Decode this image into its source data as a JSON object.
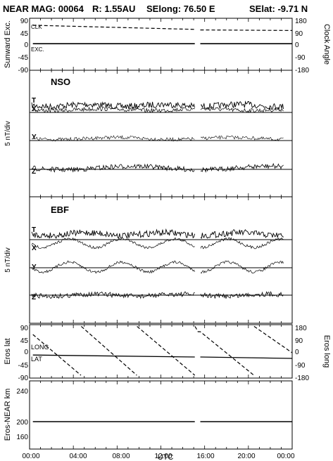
{
  "title": {
    "mission": "NEAR MAG: 00064",
    "range": "R: 1.55AU",
    "selong": "SElong:   76.50 E",
    "selat": "SElat:   -9.71 N"
  },
  "xaxis": {
    "label": "UTC",
    "ticks": [
      "00:00",
      "04:00",
      "08:00",
      "12:00",
      "16:00",
      "20:00",
      "00:00"
    ]
  },
  "panels": {
    "sunward": {
      "left_label": "Sunward Exc.",
      "right_label": "Clock Angle",
      "left_ticks": [
        "90",
        "45",
        "0",
        "-45",
        "-90"
      ],
      "right_ticks": [
        "180",
        "90",
        "0",
        "-90",
        "-180"
      ],
      "clk_label": "CLK",
      "exc_label": "EXC."
    },
    "nso": {
      "title": "NSO",
      "ylabel": "5 nT/div",
      "trace_labels": [
        "T",
        "X",
        "Y",
        "Z"
      ]
    },
    "ebf": {
      "title": "EBF",
      "ylabel": "5 nT/div",
      "trace_labels": [
        "T",
        "X",
        "Y",
        "Z"
      ]
    },
    "eros": {
      "left_label": "Eros lat",
      "right_label": "Eros long",
      "left_ticks": [
        "90",
        "45",
        "0",
        "-45",
        "-90"
      ],
      "right_ticks": [
        "180",
        "90",
        "0",
        "-90",
        "-180"
      ],
      "long_label": "LONG",
      "lat_label": "LAT"
    },
    "distance": {
      "left_label": "Eros-NEAR km",
      "left_ticks": [
        "240",
        "200",
        "160"
      ]
    }
  },
  "chart_data": [
    {
      "type": "line",
      "panel": "sunward",
      "ylabel": "Sunward Exc.",
      "y2label": "Clock Angle",
      "ylim": [
        -90,
        90
      ],
      "y2lim": [
        -180,
        180
      ],
      "xlim": [
        0,
        24
      ],
      "gap": [
        15.1,
        15.6
      ],
      "series": [
        {
          "name": "CLK",
          "axis": "right",
          "x": [
            0.3,
            4,
            8,
            12,
            15.1,
            15.6,
            20,
            24
          ],
          "values": [
            135,
            128,
            120,
            112,
            106,
            102,
            100,
            98
          ]
        },
        {
          "name": "EXC.",
          "axis": "left",
          "x": [
            0.3,
            15.1,
            15.6,
            24
          ],
          "values": [
            2,
            2,
            2,
            2
          ]
        }
      ]
    },
    {
      "type": "line",
      "panel": "nso",
      "ylabel": "5 nT/div",
      "xlim": [
        0,
        24
      ],
      "series": [
        {
          "name": "T"
        },
        {
          "name": "X"
        },
        {
          "name": "Y"
        },
        {
          "name": "Z"
        }
      ]
    },
    {
      "type": "line",
      "panel": "ebf",
      "ylabel": "5 nT/div",
      "xlim": [
        0,
        24
      ],
      "series": [
        {
          "name": "T"
        },
        {
          "name": "X"
        },
        {
          "name": "Y"
        },
        {
          "name": "Z"
        }
      ]
    },
    {
      "type": "line",
      "panel": "eros",
      "ylabel": "Eros lat",
      "y2label": "Eros long",
      "ylim": [
        -90,
        90
      ],
      "y2lim": [
        -180,
        180
      ],
      "xlim": [
        0,
        24
      ],
      "series": [
        {
          "name": "LONG",
          "axis": "right",
          "x": [
            0.3,
            4.7,
            4.72,
            9.8,
            9.82,
            15.1,
            15.12,
            15.4,
            15.6,
            20.5,
            20.52,
            24
          ],
          "values": [
            120,
            -170,
            178,
            -170,
            178,
            -170,
            178,
            140,
            140,
            -170,
            178,
            -10
          ]
        },
        {
          "name": "LAT",
          "axis": "left",
          "x": [
            0.3,
            15.1,
            15.6,
            24
          ],
          "values": [
            -13,
            -20,
            -20,
            -25
          ]
        }
      ]
    },
    {
      "type": "line",
      "panel": "distance",
      "ylabel": "Eros-NEAR km",
      "ylim": [
        120,
        260
      ],
      "xlim": [
        0,
        24
      ],
      "series": [
        {
          "name": "",
          "x": [
            0.3,
            15.1,
            15.6,
            24
          ],
          "values": [
            200,
            200,
            200,
            200
          ]
        }
      ]
    }
  ]
}
